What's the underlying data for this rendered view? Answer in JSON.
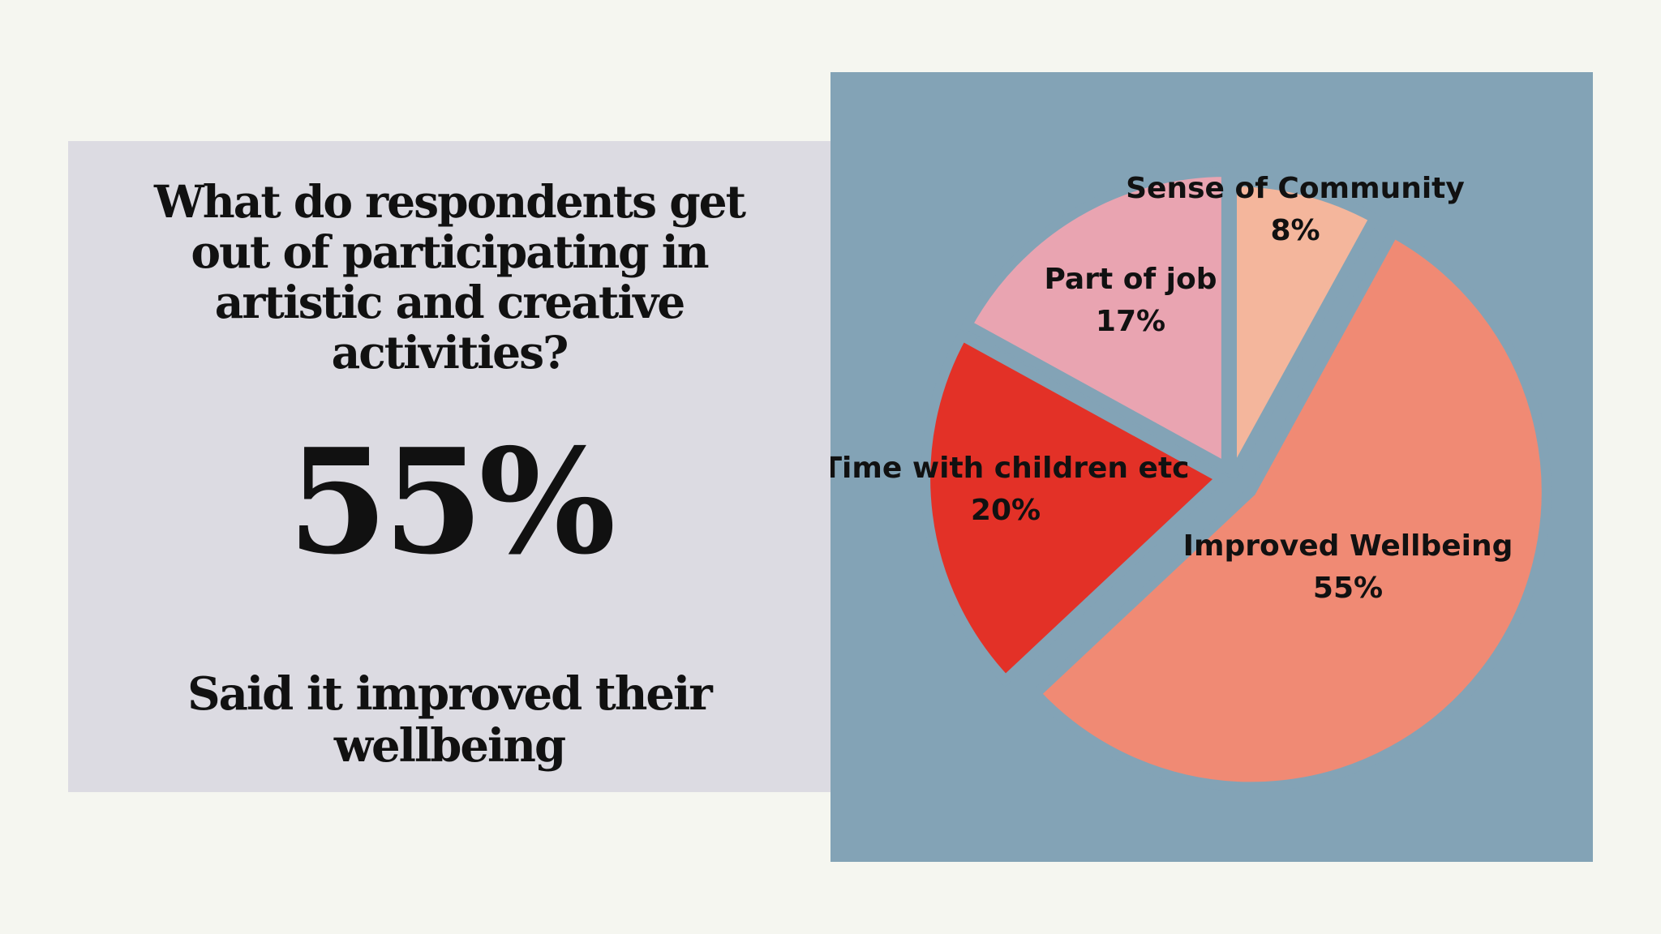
{
  "left_panel": {
    "question": "What do respondents get out of participating in artistic and creative activities?",
    "headline_value": "55%",
    "caption": "Said it improved their wellbeing"
  },
  "colors": {
    "page_background": "#f5f6f0",
    "left_panel": "#dcdbe2",
    "chart_panel": "#83a3b6"
  },
  "chart_data": {
    "type": "pie",
    "categories": [
      "Sense of Community",
      "Improved Wellbeing",
      "Time with children etc",
      "Part of job"
    ],
    "values": [
      8,
      55,
      20,
      17
    ],
    "labels": [
      "8%",
      "55%",
      "20%",
      "17%"
    ],
    "colors": [
      "#f4b69c",
      "#f08a74",
      "#e33127",
      "#e9a4b1"
    ],
    "start": "12 o'clock",
    "direction": "clockwise",
    "exploded_slices": [
      "Improved Wellbeing",
      "Time with children etc",
      "Part of job"
    ]
  }
}
